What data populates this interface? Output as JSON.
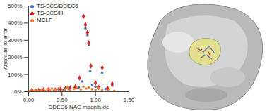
{
  "chart_data": {
    "type": "scatter",
    "xlabel": "DDEC6 NAC magnitude",
    "ylabel": "Absolute % error",
    "xlim": [
      0,
      1.5
    ],
    "xticks": [
      {
        "value": 0,
        "label": "0.00"
      },
      {
        "value": 0.5,
        "label": "0.50"
      },
      {
        "value": 1,
        "label": "1.00"
      },
      {
        "value": 1.5,
        "label": "1.50"
      }
    ],
    "ylim": [
      0,
      500
    ],
    "yticks": [
      {
        "value": 0,
        "label": "0%"
      },
      {
        "value": 100,
        "label": "100%"
      },
      {
        "value": 200,
        "label": "200%"
      },
      {
        "value": 300,
        "label": "300%"
      },
      {
        "value": 400,
        "label": "400%"
      },
      {
        "value": 500,
        "label": "500%"
      }
    ],
    "grid": false,
    "legend": "top-left",
    "series": [
      {
        "name": "TS-SCS/DDEC6",
        "color": "#4472c4",
        "marker": "circle",
        "x": [
          0.05,
          0.12,
          0.2,
          0.3,
          0.38,
          0.45,
          0.52,
          0.6,
          0.68,
          0.75,
          0.8,
          0.85,
          0.88,
          0.9,
          0.92,
          0.95,
          1.0,
          1.05,
          1.1,
          1.15,
          1.25
        ],
        "values": [
          5,
          8,
          4,
          10,
          6,
          12,
          9,
          15,
          20,
          25,
          60,
          370,
          330,
          275,
          120,
          40,
          30,
          20,
          110,
          15,
          35
        ]
      },
      {
        "name": "TS-SCS/H",
        "color": "#d62728",
        "marker": "diamond",
        "x": [
          0.05,
          0.15,
          0.22,
          0.3,
          0.4,
          0.48,
          0.55,
          0.62,
          0.7,
          0.76,
          0.82,
          0.85,
          0.88,
          0.9,
          0.93,
          1.0,
          1.05,
          1.1,
          1.18,
          1.25
        ],
        "values": [
          8,
          6,
          10,
          12,
          9,
          15,
          18,
          22,
          30,
          80,
          440,
          390,
          345,
          285,
          150,
          50,
          25,
          140,
          20,
          45
        ]
      },
      {
        "name": "MCLF",
        "color": "#ed7d31",
        "marker": "circle",
        "x": [
          0.02,
          0.05,
          0.08,
          0.1,
          0.14,
          0.18,
          0.2,
          0.25,
          0.28,
          0.32,
          0.35,
          0.4,
          0.45,
          0.5,
          0.55,
          0.58,
          0.62,
          0.68,
          0.72,
          0.78,
          0.82,
          0.86,
          0.9,
          0.95,
          1.0,
          1.05,
          1.1,
          1.2,
          1.28
        ],
        "values": [
          3,
          6,
          2,
          10,
          5,
          8,
          12,
          4,
          15,
          7,
          18,
          9,
          20,
          6,
          14,
          25,
          10,
          16,
          22,
          12,
          30,
          18,
          25,
          15,
          10,
          20,
          8,
          12,
          5
        ]
      }
    ]
  }
}
